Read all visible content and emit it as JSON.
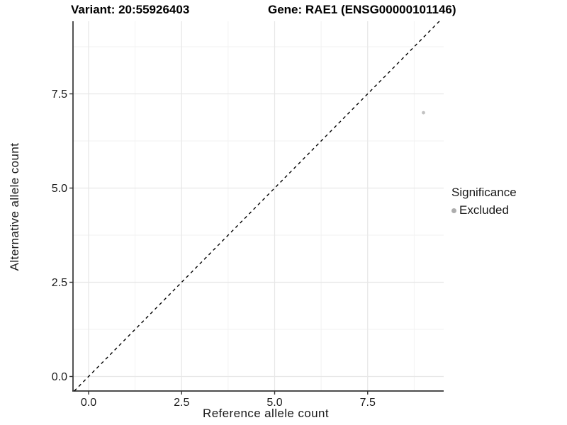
{
  "chart_data": {
    "type": "scatter",
    "title_left": "Variant: 20:55926403",
    "title_right": "Gene: RAE1 (ENSG00000101146)",
    "xlabel": "Reference allele count",
    "ylabel": "Alternative allele count",
    "x_ticks": {
      "values": [
        0,
        2.5,
        5,
        7.5
      ],
      "labels": [
        "0.0",
        "2.5",
        "5.0",
        "7.5"
      ]
    },
    "y_ticks": {
      "values": [
        0,
        2.5,
        5,
        7.5
      ],
      "labels": [
        "0.0",
        "2.5",
        "5.0",
        "7.5"
      ]
    },
    "x_minor_ticks": [
      1.25,
      3.75,
      6.25,
      8.75
    ],
    "y_minor_ticks": [
      1.25,
      3.75,
      6.25,
      8.75
    ],
    "xlim": [
      -0.42,
      9.54
    ],
    "ylim": [
      -0.39,
      9.43
    ],
    "grid": "major+minor",
    "reference_line": {
      "kind": "identity y=x",
      "style": "dashed",
      "color": "#000000"
    },
    "series": [
      {
        "name": "Excluded",
        "marker": "circle",
        "color": "#c2c2c2",
        "points": [
          [
            9,
            7
          ]
        ]
      }
    ],
    "legend": {
      "title": "Significance",
      "position": "right",
      "entries": [
        {
          "label": "Excluded",
          "marker_color": "#adadad"
        }
      ]
    },
    "colors": {
      "axis_line": "#333333",
      "tick_text": "#1a1a1a",
      "grid_major": "#e7e7e7",
      "grid_minor": "#f2f2f2"
    }
  }
}
